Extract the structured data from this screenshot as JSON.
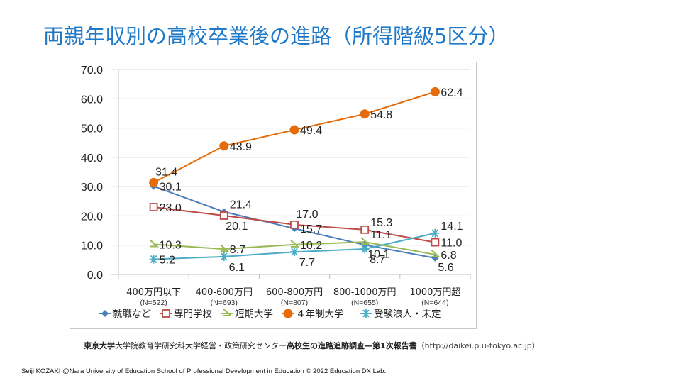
{
  "slide": {
    "title": "両親年収別の高校卒業後の進路（所得階級5区分）",
    "source_bold_1": "東京大学",
    "source_text_1": "大学院教育学研究科大学経営・政策研究センター",
    "source_bold_2": "高校生の進路追跡調査—第1次報告書",
    "source_url": "（http://daikei.p.u-tokyo.ac.jp）",
    "footer": "Seiji KOZAKI @Nara University of Education School of Professional Development in Education  © 2022 Education DX Lab."
  },
  "chart_data": {
    "type": "line",
    "title": "両親年収別の高校卒業後の進路（所得階級5区分）",
    "xlabel": "",
    "ylabel": "",
    "ylim": [
      0,
      70
    ],
    "yticks": [
      "0.0",
      "10.0",
      "20.0",
      "30.0",
      "40.0",
      "50.0",
      "60.0",
      "70.0"
    ],
    "grid": true,
    "legend_position": "bottom",
    "categories": [
      "400万円以下",
      "400-600万円",
      "600-800万円",
      "800-1000万円",
      "1000万円超"
    ],
    "category_n": [
      "(N=522)",
      "(N=693)",
      "(N=807)",
      "(N=655)",
      "(N=644)"
    ],
    "series": [
      {
        "name": "就職など",
        "color": "#4A7EBB",
        "marker": "diamond",
        "values": [
          30.1,
          21.4,
          15.7,
          10.1,
          5.6
        ],
        "label_pos": [
          "right",
          "right-up",
          "right",
          "right-down",
          "right-down"
        ]
      },
      {
        "name": "専門学校",
        "color": "#BE4B48",
        "marker": "square",
        "values": [
          23.0,
          20.1,
          17.0,
          15.3,
          11.0
        ],
        "label_pos": [
          "right",
          "below",
          "above",
          "right-up",
          "right"
        ]
      },
      {
        "name": "短期大学",
        "color": "#98B954",
        "marker": "triangle",
        "values": [
          10.3,
          8.7,
          10.2,
          11.1,
          6.8
        ],
        "label_pos": [
          "right",
          "right",
          "right",
          "right-up",
          "right"
        ]
      },
      {
        "name": "４年制大学",
        "color": "#E46C0A",
        "marker": "circle",
        "values": [
          31.4,
          43.9,
          49.4,
          54.8,
          62.4
        ],
        "label_pos": [
          "above",
          "right",
          "right",
          "right",
          "right"
        ]
      },
      {
        "name": "受験浪人・未定",
        "color": "#4BACC6",
        "marker": "star",
        "values": [
          5.2,
          6.1,
          7.7,
          8.7,
          14.1
        ],
        "label_pos": [
          "right",
          "below",
          "below",
          "below",
          "right-up"
        ]
      }
    ]
  }
}
